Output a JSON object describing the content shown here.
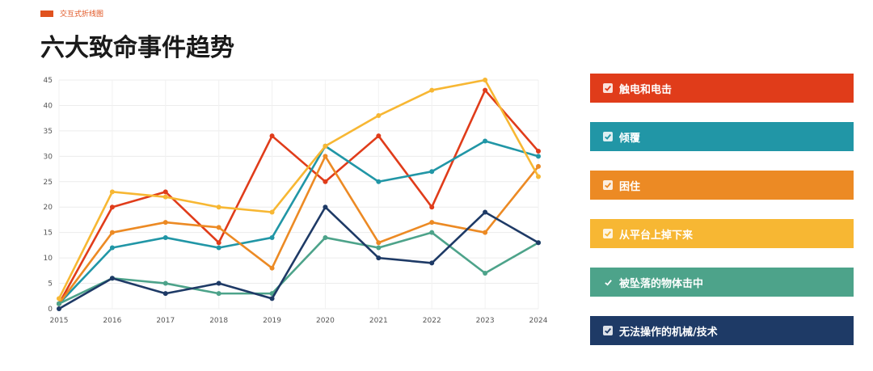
{
  "header": {
    "tag": "交互式折线图",
    "title": "六大致命事件趋势",
    "tag_color": "#e0521f"
  },
  "chart_data": {
    "type": "line",
    "title": "六大致命事件趋势",
    "x": [
      "2015",
      "2016",
      "2017",
      "2018",
      "2019",
      "2020",
      "2021",
      "2022",
      "2023",
      "2024"
    ],
    "ylim": [
      0,
      45
    ],
    "yticks": [
      0,
      5,
      10,
      15,
      20,
      25,
      30,
      35,
      40,
      45
    ],
    "grid": true,
    "series": [
      {
        "name": "触电和电击",
        "color": "#e03c1a",
        "checked": true,
        "values": [
          1,
          20,
          23,
          13,
          34,
          25,
          34,
          20,
          43,
          31
        ]
      },
      {
        "name": "倾覆",
        "color": "#2196a6",
        "checked": true,
        "values": [
          1,
          12,
          14,
          12,
          14,
          32,
          25,
          27,
          33,
          30
        ]
      },
      {
        "name": "困住",
        "color": "#ec8a24",
        "checked": true,
        "values": [
          1,
          15,
          17,
          16,
          8,
          30,
          13,
          17,
          15,
          28
        ]
      },
      {
        "name": "从平台上掉下来",
        "color": "#f7b733",
        "checked": true,
        "values": [
          2,
          23,
          22,
          20,
          19,
          32,
          38,
          43,
          45,
          26
        ]
      },
      {
        "name": "被坠落的物体击中",
        "color": "#4da38a",
        "checked": true,
        "values": [
          1,
          6,
          5,
          3,
          3,
          14,
          12,
          15,
          7,
          13
        ]
      },
      {
        "name": "无法操作的机械/技术",
        "color": "#1e3a66",
        "checked": true,
        "values": [
          0,
          6,
          3,
          5,
          2,
          20,
          10,
          9,
          19,
          13
        ]
      }
    ]
  }
}
